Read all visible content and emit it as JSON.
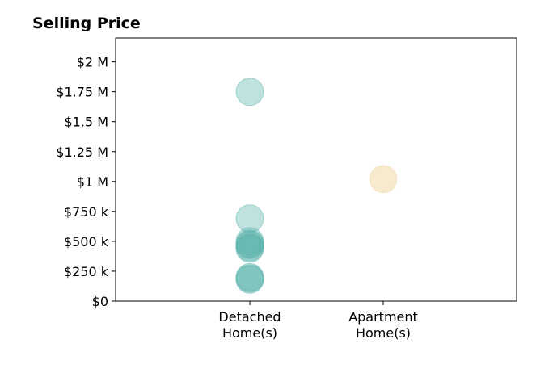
{
  "chart_data": {
    "type": "scatter",
    "title": "Selling Price",
    "xlabel": "",
    "ylabel": "",
    "categories": [
      "Detached\nHome(s)",
      "Apartment\nHome(s)"
    ],
    "y_ticks": [
      {
        "value": 0,
        "label": "$0"
      },
      {
        "value": 250000,
        "label": "$250 k"
      },
      {
        "value": 500000,
        "label": "$500 k"
      },
      {
        "value": 750000,
        "label": "$750 k"
      },
      {
        "value": 1000000,
        "label": "$1 M"
      },
      {
        "value": 1250000,
        "label": "$1.25 M"
      },
      {
        "value": 1500000,
        "label": "$1.5 M"
      },
      {
        "value": 1750000,
        "label": "$1.75 M"
      },
      {
        "value": 2000000,
        "label": "$2 M"
      }
    ],
    "ylim": [
      0,
      2200000
    ],
    "grid": false,
    "series": [
      {
        "category": "Detached\nHome(s)",
        "color": "#5ab4ac",
        "values": [
          1750000,
          690000,
          500000,
          480000,
          470000,
          450000,
          440000,
          200000,
          190000,
          180000
        ]
      },
      {
        "category": "Apartment\nHome(s)",
        "color": "#f0d9a8",
        "values": [
          1020000
        ]
      }
    ]
  }
}
